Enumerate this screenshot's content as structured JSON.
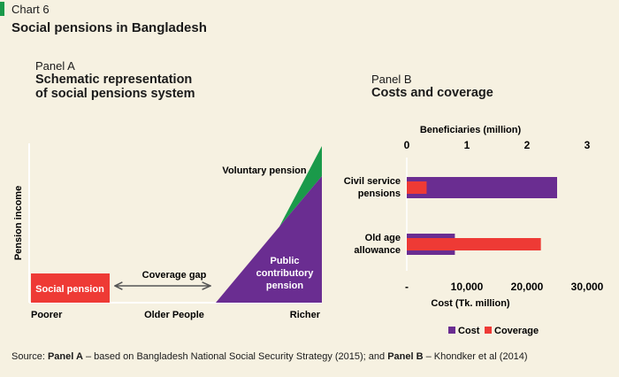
{
  "header": {
    "chart_number": "Chart 6",
    "title": "Social pensions in Bangladesh"
  },
  "panel_a": {
    "label": "Panel A",
    "title_line1": "Schematic representation",
    "title_line2": "of social pensions system",
    "y_axis_label": "Pension income",
    "x_labels": [
      "Poorer",
      "Older People",
      "Richer"
    ],
    "social_pension_label": "Social pension",
    "coverage_gap_label": "Coverage gap",
    "voluntary_pension_label": "Voluntary pension",
    "public_pension_lines": [
      "Public",
      "contributory",
      "pension"
    ]
  },
  "panel_b": {
    "label": "Panel B",
    "title": "Costs and coverage"
  },
  "source": {
    "prefix": "Source: ",
    "panel_a_bold": "Panel A",
    "panel_a_text": " – based on Bangladesh National Social Security Strategy (2015); and ",
    "panel_b_bold": "Panel B",
    "panel_b_text": " – Khondker et al (2014)"
  },
  "colors": {
    "purple": "#6a2d91",
    "red": "#ee3a35",
    "green": "#1a9a4a",
    "background": "#f6f1e1"
  },
  "chart_data": {
    "type": "bar",
    "orientation": "horizontal",
    "categories": [
      [
        "Civil service",
        "pensions"
      ],
      [
        "Old age",
        "allowance"
      ]
    ],
    "series": [
      {
        "name": "Cost",
        "axis": "bottom",
        "values": [
          25000,
          8000
        ],
        "color": "#6a2d91"
      },
      {
        "name": "Coverage",
        "axis": "top",
        "values": [
          0.33,
          2.23
        ],
        "color": "#ee3a35"
      }
    ],
    "top_axis": {
      "label": "Beneficiaries (million)",
      "ticks": [
        0,
        1,
        2,
        3
      ],
      "tick_labels": [
        "0",
        "1",
        "2",
        "3"
      ],
      "range": [
        0,
        3
      ]
    },
    "bottom_axis": {
      "label": "Cost (Tk. million)",
      "ticks": [
        0,
        10000,
        20000,
        30000
      ],
      "tick_labels": [
        "-",
        "10,000",
        "20,000",
        "30,000"
      ],
      "range": [
        0,
        30000
      ]
    },
    "legend_position": "bottom",
    "grid": false
  }
}
